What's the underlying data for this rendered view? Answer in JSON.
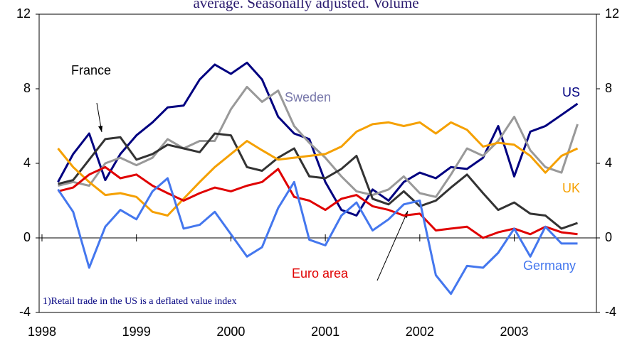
{
  "chart_data": {
    "type": "line",
    "title": "average. Seasonally adjusted. Volume",
    "note": "1)Retail trade in the US is a deflated value index",
    "x": [
      1998.17,
      1998.33,
      1998.5,
      1998.67,
      1998.83,
      1999,
      1999.17,
      1999.33,
      1999.5,
      1999.67,
      1999.83,
      2000,
      2000.17,
      2000.33,
      2000.5,
      2000.67,
      2000.83,
      2001,
      2001.17,
      2001.33,
      2001.5,
      2001.67,
      2001.83,
      2002,
      2002.17,
      2002.33,
      2002.5,
      2002.67,
      2002.83,
      2003,
      2003.17,
      2003.33,
      2003.5,
      2003.67
    ],
    "xlim": [
      1997.97,
      2003.87
    ],
    "xticks": [
      1998,
      1999,
      2000,
      2001,
      2002,
      2003
    ],
    "ylim": [
      -4,
      12
    ],
    "yticks": [
      -4,
      0,
      4,
      8,
      12
    ],
    "y2lim": [
      -4,
      12
    ],
    "y2ticks": [
      -4,
      0,
      4,
      8,
      12
    ],
    "series": [
      {
        "name": "US",
        "color": "#000080",
        "values": [
          3.0,
          4.5,
          5.6,
          3.1,
          4.5,
          5.5,
          6.2,
          7.0,
          7.1,
          8.5,
          9.3,
          8.8,
          9.4,
          8.5,
          6.5,
          5.6,
          5.3,
          3.0,
          1.5,
          1.2,
          2.6,
          2.0,
          3.0,
          3.5,
          3.2,
          3.8,
          3.7,
          4.3,
          6.0,
          3.3,
          5.7,
          6.0,
          6.6,
          7.2
        ]
      },
      {
        "name": "Sweden",
        "color": "#999999",
        "values": [
          2.8,
          3.0,
          2.8,
          4.0,
          4.3,
          3.9,
          4.3,
          5.3,
          4.8,
          5.2,
          5.2,
          6.9,
          8.1,
          7.3,
          7.9,
          6.0,
          5.1,
          4.3,
          3.3,
          2.5,
          2.3,
          2.6,
          3.3,
          2.4,
          2.2,
          3.4,
          4.8,
          4.4,
          5.2,
          6.5,
          4.7,
          3.8,
          3.5,
          6.1
        ]
      },
      {
        "name": "France",
        "color": "#333333",
        "values": [
          2.9,
          3.1,
          4.2,
          5.3,
          5.4,
          4.2,
          4.5,
          5.0,
          4.8,
          4.6,
          5.6,
          5.5,
          3.8,
          3.6,
          4.3,
          4.8,
          3.3,
          3.2,
          3.7,
          4.4,
          2.1,
          1.8,
          2.5,
          1.7,
          2.0,
          2.7,
          3.4,
          2.4,
          1.5,
          1.9,
          1.3,
          1.2,
          0.5,
          0.8
        ]
      },
      {
        "name": "UK",
        "color": "#f5a000",
        "values": [
          4.8,
          3.8,
          3.0,
          2.3,
          2.4,
          2.2,
          1.4,
          1.2,
          2.1,
          3.0,
          3.8,
          4.5,
          5.2,
          4.7,
          4.2,
          4.3,
          4.4,
          4.5,
          4.9,
          5.7,
          6.1,
          6.2,
          6.0,
          6.2,
          5.6,
          6.2,
          5.8,
          4.9,
          5.1,
          5.0,
          4.4,
          3.5,
          4.4,
          4.8
        ]
      },
      {
        "name": "Euro area",
        "color": "#e00000",
        "values": [
          2.5,
          2.7,
          3.4,
          3.8,
          3.2,
          3.4,
          2.8,
          2.4,
          2.0,
          2.4,
          2.7,
          2.5,
          2.8,
          3.0,
          3.7,
          2.2,
          2.0,
          1.5,
          2.1,
          2.3,
          1.7,
          1.5,
          1.2,
          1.3,
          0.4,
          0.5,
          0.6,
          0.0,
          0.3,
          0.5,
          0.2,
          0.6,
          0.3,
          0.2
        ]
      },
      {
        "name": "Germany",
        "color": "#4477ee",
        "values": [
          2.6,
          1.4,
          -1.6,
          0.6,
          1.5,
          1.0,
          2.5,
          3.2,
          0.5,
          0.7,
          1.4,
          0.2,
          -1.0,
          -0.5,
          1.6,
          3.0,
          -0.1,
          -0.4,
          1.2,
          1.9,
          0.4,
          1.0,
          1.8,
          2.0,
          -2.0,
          -3.0,
          -1.5,
          -1.6,
          -0.8,
          0.5,
          -1.0,
          0.6,
          -0.3,
          -0.3
        ]
      }
    ]
  }
}
